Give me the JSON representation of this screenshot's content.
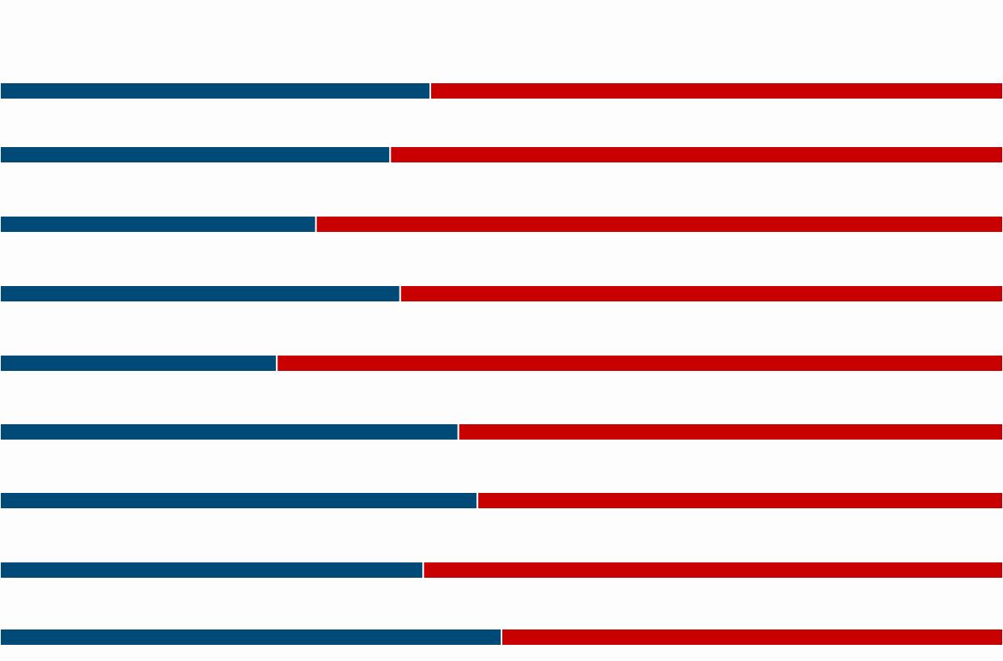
{
  "chart_data": {
    "type": "bar",
    "stacked": true,
    "orientation": "horizontal",
    "normalized": true,
    "xlim": [
      0,
      100
    ],
    "grid": false,
    "legend": "none",
    "categories": [
      "",
      "",
      "",
      "",
      "",
      "",
      "",
      "",
      ""
    ],
    "series": [
      {
        "color": "#004a77",
        "values": [
          42.9,
          38.9,
          31.5,
          39.9,
          27.6,
          45.7,
          47.6,
          42.2,
          50.0
        ]
      },
      {
        "color": "#c80000",
        "values": [
          57.1,
          61.1,
          68.5,
          60.1,
          72.4,
          54.3,
          52.4,
          57.8,
          50.0
        ]
      }
    ]
  }
}
